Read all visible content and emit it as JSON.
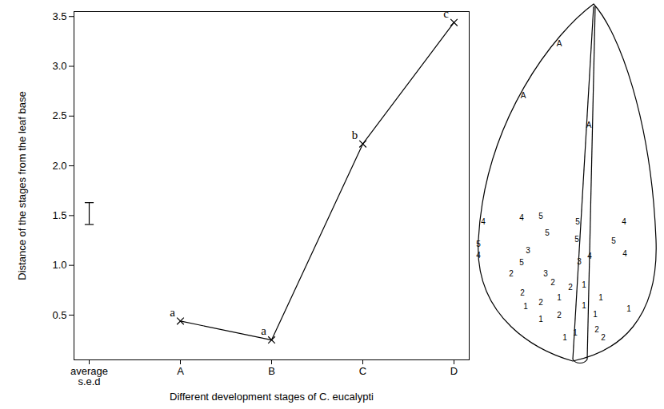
{
  "chart_data": {
    "type": "line",
    "x_label": "Different development stages of C. eucalypti",
    "y_label": "Distance of the stages from the leaf base",
    "categories": [
      "average s.e.d",
      "A",
      "B",
      "C",
      "D"
    ],
    "values": [
      null,
      0.44,
      0.25,
      2.22,
      3.44
    ],
    "annotations": [
      null,
      "a",
      "a",
      "b",
      "c"
    ],
    "error_bar": {
      "category": "average s.e.d",
      "low": 1.41,
      "high": 1.63
    },
    "ylim": [
      0.05,
      3.55
    ],
    "yticks": [
      0.5,
      {
        "value": 1,
        "label": "1.0"
      },
      1.5,
      {
        "value": 2,
        "label": "2.0"
      },
      2.5,
      {
        "value": 3,
        "label": "3.0"
      },
      3.5
    ],
    "color": "#000000",
    "marker": "x",
    "line_style": "solid"
  },
  "leaf_diagram": {
    "labels": [
      "A",
      "A",
      "A",
      "4",
      "4",
      "5",
      "5",
      "4",
      "5",
      "5",
      "3",
      "5",
      "5",
      "4",
      "5",
      "3",
      "4",
      "2",
      "3",
      "4",
      "2",
      "2",
      "2",
      "1",
      "1",
      "1",
      "1",
      "2",
      "1",
      "1",
      "1",
      "2",
      "1",
      "2",
      "1",
      "1",
      "2"
    ]
  }
}
